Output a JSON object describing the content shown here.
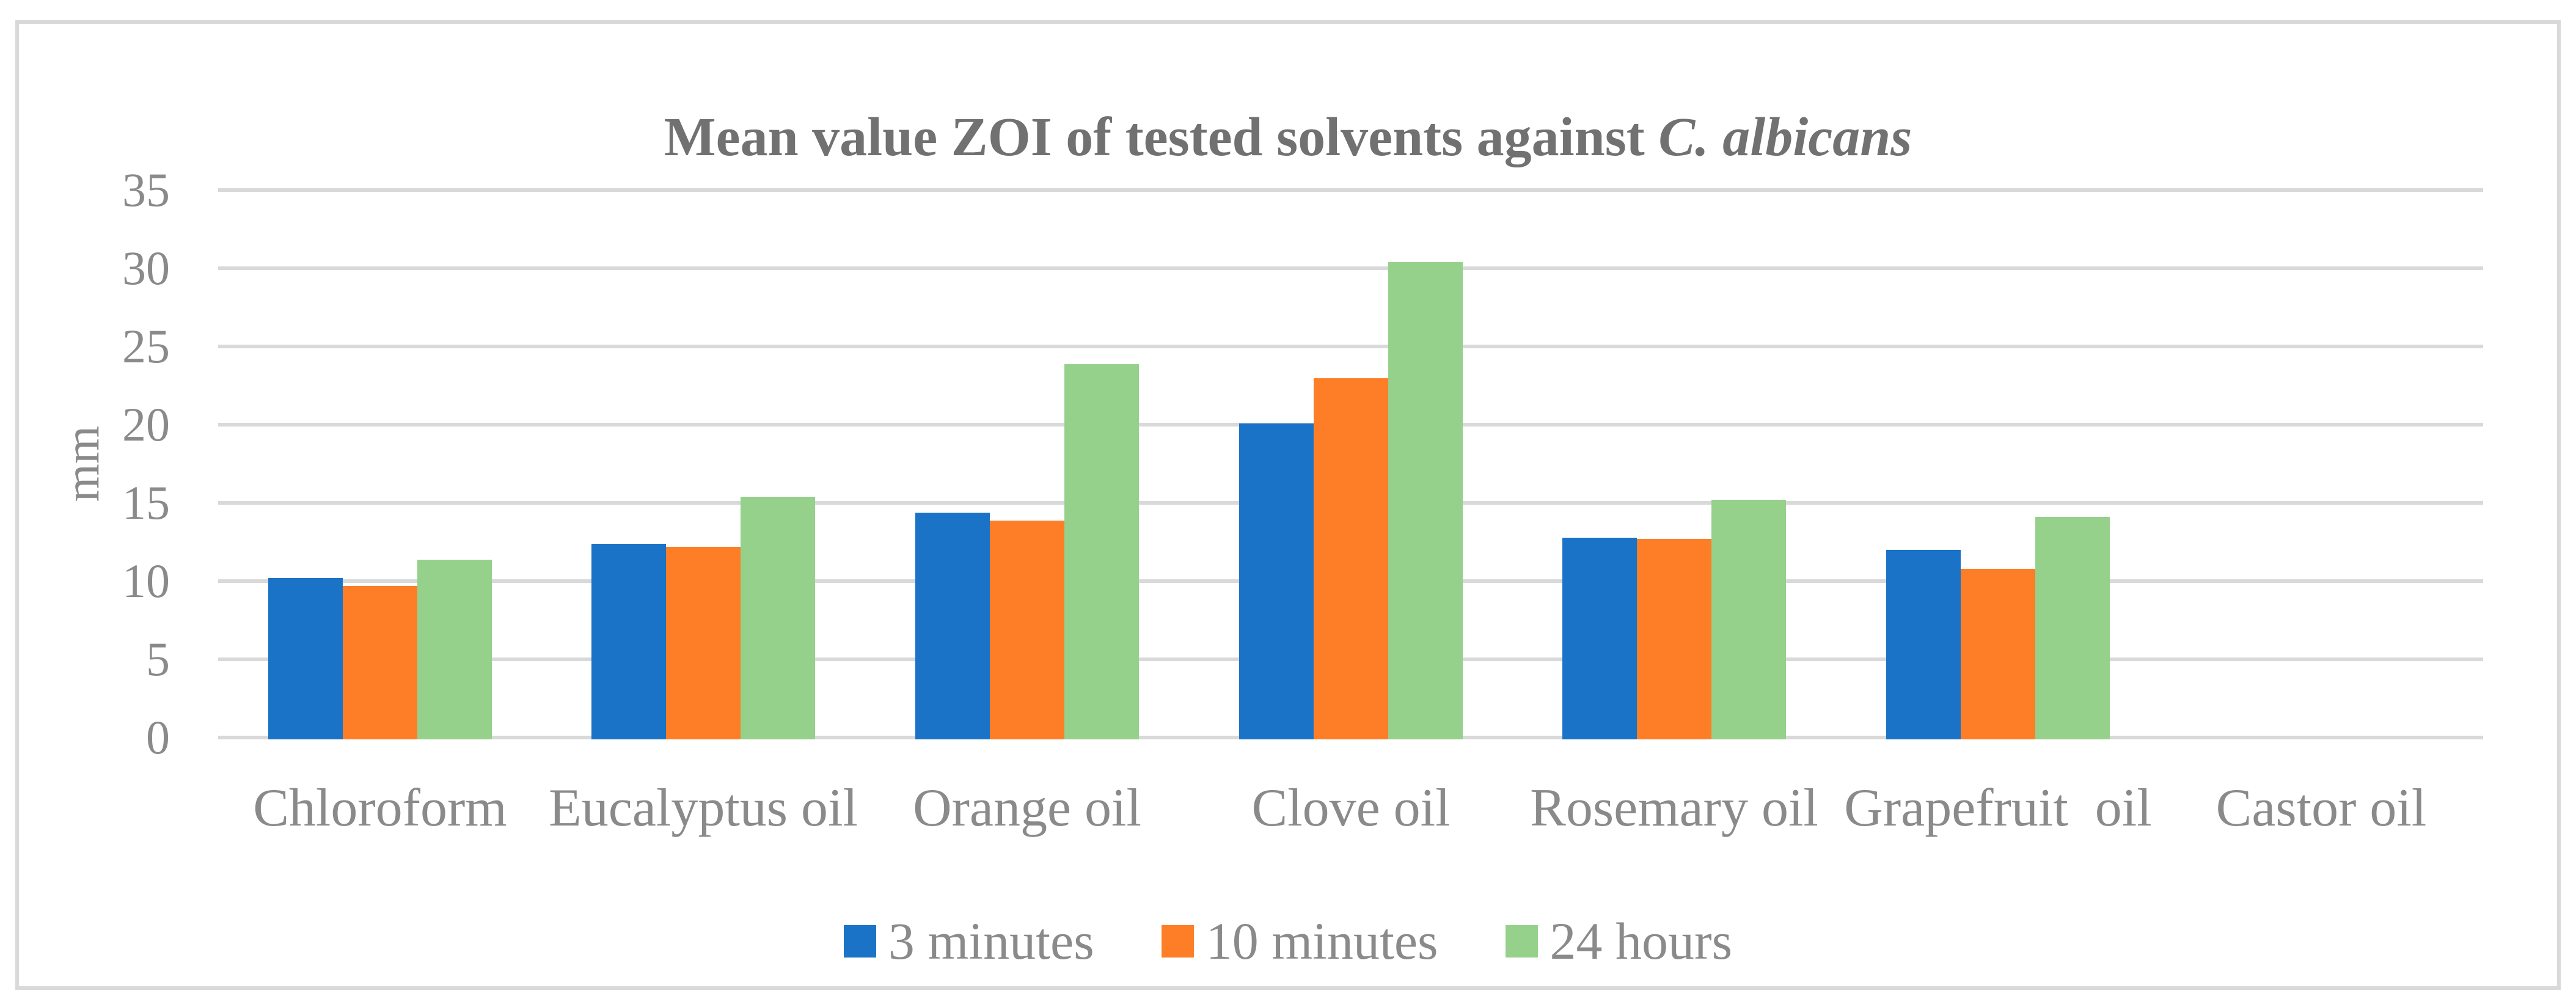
{
  "chart": {
    "title_prefix": "Mean value ZOI of tested solvents against ",
    "title_species": "C. albicans",
    "y_axis_label": "mm"
  },
  "colors": {
    "grid": "#D9D9D9",
    "frame_border": "#D9D9D9",
    "title_text": "#717171",
    "axis_text": "#8A8A8A",
    "series_blue": "#1B73C7",
    "series_orange": "#FD7E27",
    "series_green": "#95D18B"
  },
  "chart_data": {
    "type": "bar",
    "title": "Mean value ZOI of tested solvents against C. albicans",
    "xlabel": "",
    "ylabel": "mm",
    "ylim": [
      0,
      35
    ],
    "ytick_step": 5,
    "ytick_labels": [
      "0",
      "5",
      "10",
      "15",
      "20",
      "25",
      "30",
      "35"
    ],
    "grid": true,
    "legend_position": "bottom",
    "categories": [
      "Chloroform",
      "Eucalyptus oil",
      "Orange oil",
      "Clove oil",
      "Rosemary oil",
      "Grapefruit  oil",
      "Castor oil"
    ],
    "series": [
      {
        "name": "3 minutes",
        "color": "#1B73C7",
        "values": [
          10.3,
          12.5,
          14.5,
          20.2,
          12.9,
          12.1,
          0
        ]
      },
      {
        "name": "10 minutes",
        "color": "#FD7E27",
        "values": [
          9.8,
          12.3,
          14.0,
          23.1,
          12.8,
          10.9,
          0
        ]
      },
      {
        "name": "24 hours",
        "color": "#95D18B",
        "values": [
          11.5,
          15.5,
          24.0,
          30.5,
          15.3,
          14.2,
          0
        ]
      }
    ]
  }
}
